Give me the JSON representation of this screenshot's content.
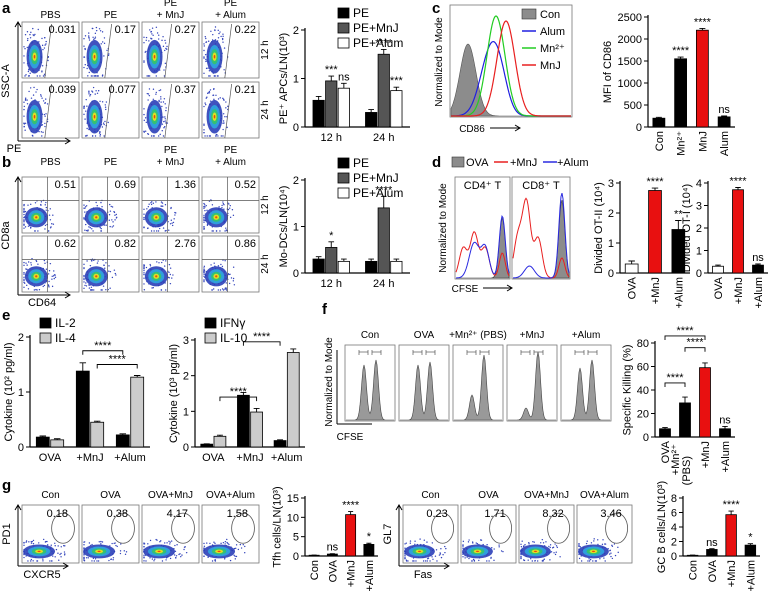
{
  "panel_letters": [
    "a",
    "b",
    "c",
    "d",
    "e",
    "f",
    "g"
  ],
  "flow_a": {
    "columns": [
      [
        "PBS"
      ],
      [
        "PE"
      ],
      [
        "PE",
        "+ MnJ"
      ],
      [
        "PE",
        "+ Alum"
      ]
    ],
    "rows": [
      "12 h",
      "24 h"
    ],
    "gates": [
      [
        "0.031",
        "0.17",
        "0.27",
        "0.22"
      ],
      [
        "0.039",
        "0.077",
        "0.37",
        "0.21"
      ]
    ],
    "y_axis": "SSC-A",
    "x_axis": "PE"
  },
  "flow_b": {
    "columns": [
      [
        "PBS"
      ],
      [
        "PE"
      ],
      [
        "PE",
        "+ MnJ"
      ],
      [
        "PE",
        "+ Alum"
      ]
    ],
    "rows": [
      "12 h",
      "24 h"
    ],
    "gates": [
      [
        "0.51",
        "0.69",
        "1.36",
        "0.52"
      ],
      [
        "0.62",
        "0.82",
        "2.76",
        "0.86"
      ]
    ],
    "y_axis": "CD8a",
    "x_axis": "CD64"
  },
  "hist_c": {
    "y_axis": "Normalized to Mode",
    "x_axis": "CD86",
    "legend": [
      {
        "name": "Con",
        "color": "#8c8c8c"
      },
      {
        "name": "Alum",
        "color": "#1f1fe0"
      },
      {
        "name": "Mn²⁺",
        "color": "#22cc22"
      },
      {
        "name": "MnJ",
        "color": "#e82020"
      }
    ]
  },
  "hist_d": {
    "y_axis": "Normalized to Mode",
    "x_axis": "CFSE",
    "panels": [
      "CD4⁺ T",
      "CD8⁺ T"
    ],
    "legend": [
      {
        "name": "OVA",
        "color": "#8c8c8c"
      },
      {
        "name": "+MnJ",
        "color": "#e82020"
      },
      {
        "name": "+Alum",
        "color": "#2a2ae0"
      }
    ]
  },
  "hist_f": {
    "y_axis": "Normalized to Mode",
    "x_axis": "CFSE",
    "columns": [
      "Con",
      "OVA",
      "+Mn²⁺ (PBS)",
      "+MnJ",
      "+Alum"
    ]
  },
  "flow_g": [
    {
      "columns": [
        "Con",
        "OVA",
        "OVA+MnJ",
        "OVA+Alum"
      ],
      "gates": [
        "0.18",
        "0.38",
        "4.17",
        "1.58"
      ],
      "y_axis": "PD1",
      "x_axis": "CXCR5"
    },
    {
      "columns": [
        "Con",
        "OVA",
        "OVA+MnJ",
        "OVA+Alum"
      ],
      "gates": [
        "0.23",
        "1.71",
        "8.32",
        "3.46"
      ],
      "y_axis": "GL7",
      "x_axis": "Fas"
    }
  ],
  "chart_data": [
    {
      "type": "bar",
      "ylabel": "PE⁺ APCs/LN(10³)",
      "categories": [
        "12 h",
        "24 h"
      ],
      "ylim": [
        0,
        2
      ],
      "yticks": [
        0,
        1,
        2
      ],
      "series": [
        {
          "name": "PE",
          "color": "#000000",
          "values": [
            0.55,
            0.3
          ],
          "errors": [
            0.08,
            0.06
          ]
        },
        {
          "name": "PE+MnJ",
          "color": "#555555",
          "values": [
            0.95,
            1.5
          ],
          "errors": [
            0.1,
            0.1
          ],
          "significance": [
            "***",
            "****"
          ]
        },
        {
          "name": "PE+Alum",
          "color": "#ffffff",
          "values": [
            0.8,
            0.75
          ],
          "errors": [
            0.1,
            0.07
          ],
          "significance": [
            "ns",
            "***"
          ]
        }
      ]
    },
    {
      "type": "bar",
      "ylabel": "Mo-DCs/LN(10⁴)",
      "categories": [
        "12 h",
        "24 h"
      ],
      "ylim": [
        0,
        2
      ],
      "yticks": [
        0,
        1,
        2
      ],
      "series": [
        {
          "name": "PE",
          "color": "#000000",
          "values": [
            0.3,
            0.25
          ],
          "errors": [
            0.05,
            0.05
          ]
        },
        {
          "name": "PE+MnJ",
          "color": "#555555",
          "values": [
            0.55,
            1.4
          ],
          "errors": [
            0.12,
            0.25
          ],
          "significance": [
            "*",
            "****"
          ]
        },
        {
          "name": "PE+Alum",
          "color": "#ffffff",
          "values": [
            0.25,
            0.25
          ],
          "errors": [
            0.05,
            0.05
          ]
        }
      ]
    },
    {
      "type": "bar",
      "ylabel": "MFI of CD86",
      "categories": [
        "Con",
        "Mn²⁺",
        "MnJ",
        "Alum"
      ],
      "values": [
        200,
        1550,
        2200,
        230
      ],
      "errors": [
        20,
        40,
        40,
        20
      ],
      "colors": [
        "#000000",
        "#000000",
        "#e81010",
        "#000000"
      ],
      "significance": [
        null,
        "****",
        "****",
        "ns"
      ],
      "ylim": [
        0,
        2500
      ],
      "yticks": [
        0,
        500,
        1000,
        1500,
        2000,
        2500
      ]
    },
    {
      "type": "bar",
      "ylabel": "Divided OT-II (10⁴)",
      "categories": [
        "OVA",
        "+MnJ",
        "+Alum"
      ],
      "values": [
        0.3,
        2.75,
        1.45
      ],
      "errors": [
        0.1,
        0.08,
        0.3
      ],
      "colors": [
        "#ffffff",
        "#e81010",
        "#000000"
      ],
      "significance": [
        null,
        "****",
        "**"
      ],
      "ylim": [
        0,
        3
      ],
      "yticks": [
        0,
        1,
        2,
        3
      ]
    },
    {
      "type": "bar",
      "ylabel": "Divided OT-I (10⁴)",
      "categories": [
        "OVA",
        "+MnJ",
        "+Alum"
      ],
      "values": [
        0.3,
        3.7,
        0.35
      ],
      "errors": [
        0.05,
        0.1,
        0.05
      ],
      "colors": [
        "#ffffff",
        "#e81010",
        "#000000"
      ],
      "significance": [
        null,
        "****",
        "ns"
      ],
      "ylim": [
        0,
        4
      ],
      "yticks": [
        0,
        1,
        2,
        3,
        4
      ]
    },
    {
      "type": "bar",
      "ylabel": "Cytokine (10² pg/ml)",
      "categories": [
        "OVA",
        "+MnJ",
        "+Alum"
      ],
      "ylim": [
        0,
        2
      ],
      "yticks": [
        0,
        1,
        2
      ],
      "brackets": [
        "****",
        "****"
      ],
      "series": [
        {
          "name": "IL-2",
          "color": "#000000",
          "values": [
            0.18,
            1.38,
            0.22
          ],
          "errors": [
            0.02,
            0.15,
            0.02
          ]
        },
        {
          "name": "IL-4",
          "color": "#cccccc",
          "values": [
            0.13,
            0.45,
            1.27
          ],
          "errors": [
            0.02,
            0.02,
            0.03
          ]
        }
      ]
    },
    {
      "type": "bar",
      "ylabel": "Cytokine (10³ pg/ml)",
      "categories": [
        "OVA",
        "+MnJ",
        "+Alum"
      ],
      "ylim": [
        0,
        3
      ],
      "yticks": [
        0,
        1,
        2,
        3
      ],
      "brackets": [
        "****",
        "****"
      ],
      "series": [
        {
          "name": "IFNγ",
          "color": "#000000",
          "values": [
            0.08,
            1.45,
            0.18
          ],
          "errors": [
            0.01,
            0.08,
            0.02
          ]
        },
        {
          "name": "IL-10",
          "color": "#cccccc",
          "values": [
            0.3,
            0.98,
            2.65
          ],
          "errors": [
            0.03,
            0.1,
            0.1
          ]
        }
      ]
    },
    {
      "type": "bar",
      "ylabel": "Specific Killing (%)",
      "categories": [
        "OVA",
        "+Mn²⁺ (PBS)",
        "+MnJ",
        "+Alum"
      ],
      "values": [
        7,
        29,
        59,
        7
      ],
      "errors": [
        1,
        5,
        4,
        2
      ],
      "colors": [
        "#000000",
        "#000000",
        "#e81010",
        "#000000"
      ],
      "significance": [
        null,
        null,
        null,
        "ns"
      ],
      "brackets": [
        "****",
        "****",
        "****"
      ],
      "ylim": [
        0,
        80
      ],
      "yticks": [
        0,
        20,
        40,
        60,
        80
      ]
    },
    {
      "type": "bar",
      "ylabel": "Tfh cells/LN(10³)",
      "categories": [
        "Con",
        "OVA",
        "+MnJ",
        "+Alum"
      ],
      "values": [
        0.2,
        0.5,
        10.7,
        3
      ],
      "errors": [
        0.05,
        0.1,
        0.8,
        0.3
      ],
      "colors": [
        "#000000",
        "#000000",
        "#e81010",
        "#000000"
      ],
      "significance": [
        null,
        "ns",
        "****",
        "*"
      ],
      "ylim": [
        0,
        15
      ],
      "yticks": [
        0,
        5,
        10,
        15
      ]
    },
    {
      "type": "bar",
      "ylabel": "GC B cells/LN(10³)",
      "categories": [
        "Con",
        "OVA",
        "+MnJ",
        "+Alum"
      ],
      "values": [
        0.1,
        0.9,
        5.7,
        1.5
      ],
      "errors": [
        0.02,
        0.1,
        0.5,
        0.2
      ],
      "colors": [
        "#000000",
        "#000000",
        "#e81010",
        "#000000"
      ],
      "significance": [
        null,
        "ns",
        "****",
        "*"
      ],
      "ylim": [
        0,
        8
      ],
      "yticks": [
        0,
        2,
        4,
        6,
        8
      ]
    }
  ]
}
